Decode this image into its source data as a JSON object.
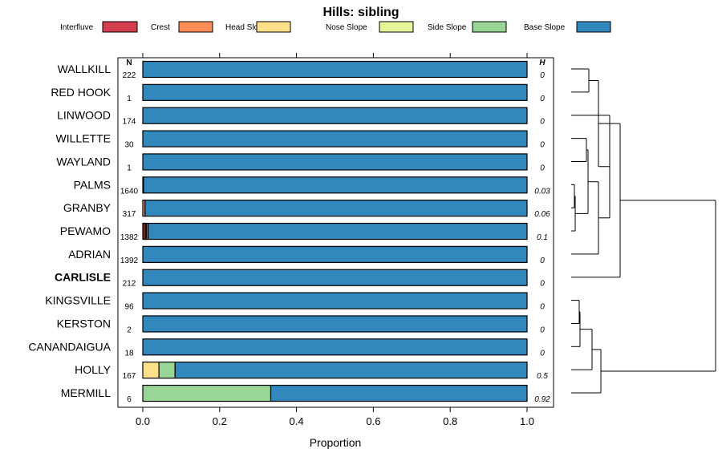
{
  "chart_data": {
    "type": "bar",
    "title": "Hills: sibling",
    "xlabel": "Proportion",
    "xlim": [
      0,
      1
    ],
    "xticks": [
      "0.0",
      "0.2",
      "0.4",
      "0.6",
      "0.8",
      "1.0"
    ],
    "n_header": "N",
    "h_header": "H",
    "legend_position": "top",
    "legend": [
      {
        "name": "Interfluve",
        "color": "#d53e4f"
      },
      {
        "name": "Crest",
        "color": "#fc8d59"
      },
      {
        "name": "Head Slope",
        "color": "#fee08b"
      },
      {
        "name": "Nose Slope",
        "color": "#e6f598"
      },
      {
        "name": "Side Slope",
        "color": "#99d594"
      },
      {
        "name": "Base Slope",
        "color": "#3288bd"
      }
    ],
    "categories": [
      "WALLKILL",
      "RED HOOK",
      "LINWOOD",
      "WILLETTE",
      "WAYLAND",
      "PALMS",
      "GRANBY",
      "PEWAMO",
      "ADRIAN",
      "CARLISLE",
      "KINGSVILLE",
      "KERSTON",
      "CANANDAIGUA",
      "HOLLY",
      "MERMILL"
    ],
    "highlighted": "CARLISLE",
    "n": [
      "222",
      "1",
      "174",
      "30",
      "1",
      "1640",
      "317",
      "1382",
      "1392",
      "212",
      "96",
      "2",
      "18",
      "167",
      "6"
    ],
    "h": [
      "0",
      "0",
      "0",
      "0",
      "0",
      "0.03",
      "0.06",
      "0.1",
      "0",
      "0",
      "0",
      "0",
      "0",
      "0.5",
      "0.92"
    ],
    "series": [
      {
        "name": "Interfluve",
        "values": [
          0,
          0,
          0,
          0,
          0,
          0,
          0,
          0.004,
          0,
          0,
          0,
          0,
          0,
          0,
          0
        ]
      },
      {
        "name": "Crest",
        "values": [
          0,
          0,
          0,
          0,
          0,
          0.002,
          0.006,
          0.004,
          0,
          0,
          0,
          0,
          0,
          0,
          0
        ]
      },
      {
        "name": "Head Slope",
        "values": [
          0,
          0,
          0,
          0,
          0,
          0,
          0,
          0.002,
          0,
          0,
          0,
          0,
          0,
          0.042,
          0
        ]
      },
      {
        "name": "Nose Slope",
        "values": [
          0,
          0,
          0,
          0,
          0,
          0,
          0,
          0,
          0,
          0,
          0,
          0,
          0,
          0,
          0
        ]
      },
      {
        "name": "Side Slope",
        "values": [
          0,
          0,
          0,
          0,
          0,
          0,
          0,
          0.004,
          0,
          0,
          0,
          0,
          0,
          0.042,
          0.333
        ]
      },
      {
        "name": "Base Slope",
        "values": [
          1,
          1,
          1,
          1,
          1,
          0.998,
          0.994,
          0.986,
          1,
          1,
          1,
          1,
          1,
          0.916,
          0.667
        ]
      }
    ],
    "dendrogram": {
      "description_free": true,
      "merges": [
        [
          0,
          1,
          0.2
        ],
        [
          2,
          3,
          0.2
        ],
        [
          5,
          6,
          0.05
        ],
        [
          7,
          8,
          0.08
        ],
        [
          10,
          11,
          0.1
        ],
        [
          12,
          13,
          0.25
        ]
      ]
    }
  }
}
